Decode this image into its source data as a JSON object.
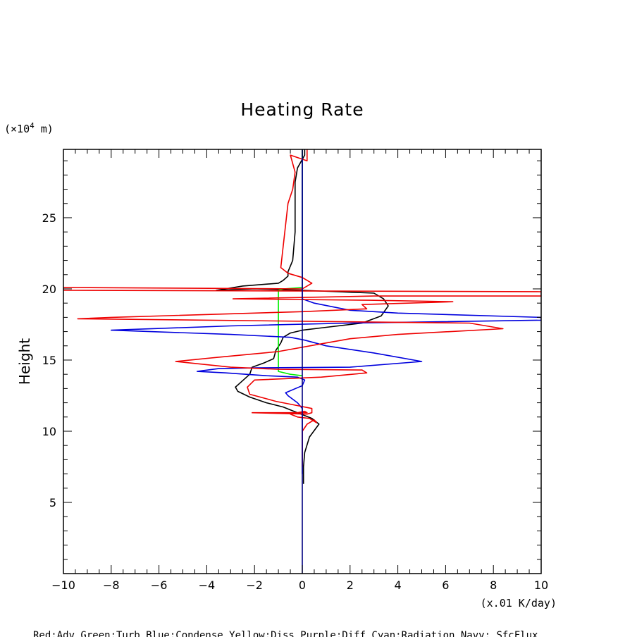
{
  "chart_data": {
    "type": "line",
    "title": "Heating Rate",
    "ylabel": "Height",
    "y_unit_prefix": "(×10",
    "y_unit_exp": "4",
    "y_unit_suffix": " m)",
    "xlabel_unit": "(x.01 K/day)",
    "legend_text": "Red:Adv  Green:Turb  Blue:Condense  Yellow:Diss  Purple:Diff  Cyan:Radiation  Navy: SfcFlux",
    "xlim": [
      -10,
      10
    ],
    "ylim": [
      0,
      29.8
    ],
    "x_ticks": [
      -10,
      -8,
      -6,
      -4,
      -2,
      0,
      2,
      4,
      6,
      8,
      10
    ],
    "y_ticks": [
      5,
      10,
      15,
      20,
      25
    ],
    "x_tick_labels": [
      "−10",
      "−8",
      "−6",
      "−4",
      "−2",
      "0",
      "2",
      "4",
      "6",
      "8",
      "10"
    ],
    "y_tick_labels": [
      "5",
      "10",
      "15",
      "20",
      "25"
    ],
    "grid": false,
    "series": [
      {
        "color": "#000000",
        "points": [
          [
            0.05,
            6.3
          ],
          [
            0.05,
            7.5
          ],
          [
            0.1,
            8.5
          ],
          [
            0.3,
            9.6
          ],
          [
            0.7,
            10.5
          ],
          [
            0.4,
            10.9
          ],
          [
            -0.2,
            11.3
          ],
          [
            -0.8,
            11.7
          ],
          [
            -1.5,
            12
          ],
          [
            -2.2,
            12.4
          ],
          [
            -2.7,
            12.8
          ],
          [
            -2.8,
            13.1
          ],
          [
            -2.6,
            13.4
          ],
          [
            -2.2,
            14
          ],
          [
            -2.1,
            14.5
          ],
          [
            -1.6,
            14.8
          ],
          [
            -1.2,
            15.1
          ],
          [
            -1.1,
            15.7
          ],
          [
            -0.9,
            16.2
          ],
          [
            -0.8,
            16.6
          ],
          [
            -0.5,
            16.9
          ],
          [
            0,
            17.1
          ],
          [
            1,
            17.3
          ],
          [
            2.5,
            17.6
          ],
          [
            3.3,
            18.1
          ],
          [
            3.6,
            18.8
          ],
          [
            3.4,
            19.3
          ],
          [
            3,
            19.7
          ],
          [
            1.5,
            19.8
          ],
          [
            0,
            19.9
          ],
          [
            -2,
            20
          ],
          [
            -3.6,
            19.9
          ],
          [
            -2.5,
            20.2
          ],
          [
            -1.0,
            20.4
          ],
          [
            -0.8,
            20.6
          ],
          [
            -0.6,
            20.9
          ],
          [
            -0.6,
            21.2
          ],
          [
            -0.4,
            22
          ],
          [
            -0.3,
            24
          ],
          [
            -0.3,
            26.5
          ],
          [
            -0.3,
            27.5
          ],
          [
            -0.2,
            28.5
          ],
          [
            0.1,
            29.4
          ],
          [
            0.1,
            29.8
          ]
        ]
      },
      {
        "color": "#00ee00",
        "points": [
          [
            0,
            13.9
          ],
          [
            -0.5,
            14
          ],
          [
            -1.0,
            14.2
          ],
          [
            -1.0,
            19.9
          ],
          [
            -0.8,
            20.0
          ],
          [
            0,
            20.1
          ],
          [
            0,
            29.8
          ]
        ]
      },
      {
        "color": "#0000dd",
        "points": [
          [
            0,
            7
          ],
          [
            0,
            11.6
          ],
          [
            -0.2,
            12.0
          ],
          [
            -0.6,
            12.5
          ],
          [
            -0.7,
            12.7
          ],
          [
            0,
            13.2
          ],
          [
            0.1,
            13.6
          ],
          [
            -0.2,
            13.8
          ],
          [
            -1.5,
            13.9
          ],
          [
            -3.2,
            14.1
          ],
          [
            -4.4,
            14.2
          ],
          [
            -3.5,
            14.4
          ],
          [
            -2,
            14.45
          ],
          [
            2,
            14.5
          ],
          [
            5,
            14.9
          ],
          [
            3,
            15.5
          ],
          [
            1,
            16
          ],
          [
            0.1,
            16.4
          ],
          [
            -0.5,
            16.6
          ],
          [
            -3,
            16.8
          ],
          [
            -8,
            17.1
          ],
          [
            -3,
            17.4
          ],
          [
            2,
            17.6
          ],
          [
            10,
            17.8
          ],
          [
            10,
            18
          ],
          [
            4,
            18.3
          ],
          [
            2,
            18.5
          ],
          [
            0.5,
            19
          ],
          [
            0,
            19.3
          ],
          [
            0,
            29.8
          ]
        ]
      },
      {
        "color": "#ee0000",
        "points": [
          [
            0,
            7.5
          ],
          [
            0,
            10.0
          ],
          [
            0.2,
            10.5
          ],
          [
            0.5,
            10.8
          ],
          [
            0.6,
            10.6
          ],
          [
            0.3,
            10.9
          ],
          [
            -0.2,
            11.0
          ],
          [
            -0.5,
            11.2
          ],
          [
            0.1,
            11.4
          ],
          [
            0.2,
            11.3
          ],
          [
            -2.1,
            11.3
          ],
          [
            0.2,
            11.2
          ],
          [
            0.4,
            11.3
          ],
          [
            0.4,
            11.6
          ],
          [
            -0.2,
            11.8
          ],
          [
            -1.1,
            12.1
          ],
          [
            -2.2,
            12.6
          ],
          [
            -2.3,
            13.1
          ],
          [
            -2.0,
            13.6
          ],
          [
            0.8,
            13.8
          ],
          [
            2.7,
            14.1
          ],
          [
            2.5,
            14.3
          ],
          [
            -1,
            14.35
          ],
          [
            -3,
            14.5
          ],
          [
            -5.3,
            14.9
          ],
          [
            -3.5,
            15.2
          ],
          [
            -1,
            15.6
          ],
          [
            1,
            16.2
          ],
          [
            2,
            16.5
          ],
          [
            4,
            16.8
          ],
          [
            8.4,
            17.2
          ],
          [
            7,
            17.6
          ],
          [
            -9.4,
            17.9
          ],
          [
            -8,
            18
          ],
          [
            0,
            18.4
          ],
          [
            2.7,
            18.6
          ],
          [
            2.5,
            18.9
          ],
          [
            6.3,
            19.1
          ],
          [
            2.8,
            19.2
          ],
          [
            -2.9,
            19.3
          ],
          [
            3,
            19.5
          ],
          [
            10,
            19.5
          ],
          [
            10,
            19.8
          ],
          [
            -10,
            19.9
          ],
          [
            -10,
            20.1
          ],
          [
            0,
            20.0
          ],
          [
            0.4,
            20.4
          ],
          [
            0,
            20.8
          ],
          [
            -0.6,
            21.1
          ],
          [
            -0.9,
            21.5
          ],
          [
            -0.8,
            23
          ],
          [
            -0.7,
            24.5
          ],
          [
            -0.6,
            26.0
          ],
          [
            -0.4,
            27
          ],
          [
            -0.3,
            28.2
          ],
          [
            -0.5,
            29.4
          ],
          [
            0.2,
            29.0
          ],
          [
            0.2,
            29.8
          ]
        ]
      },
      {
        "color": "#000080",
        "points": [
          [
            0,
            0
          ],
          [
            0,
            29.8
          ]
        ]
      }
    ]
  }
}
